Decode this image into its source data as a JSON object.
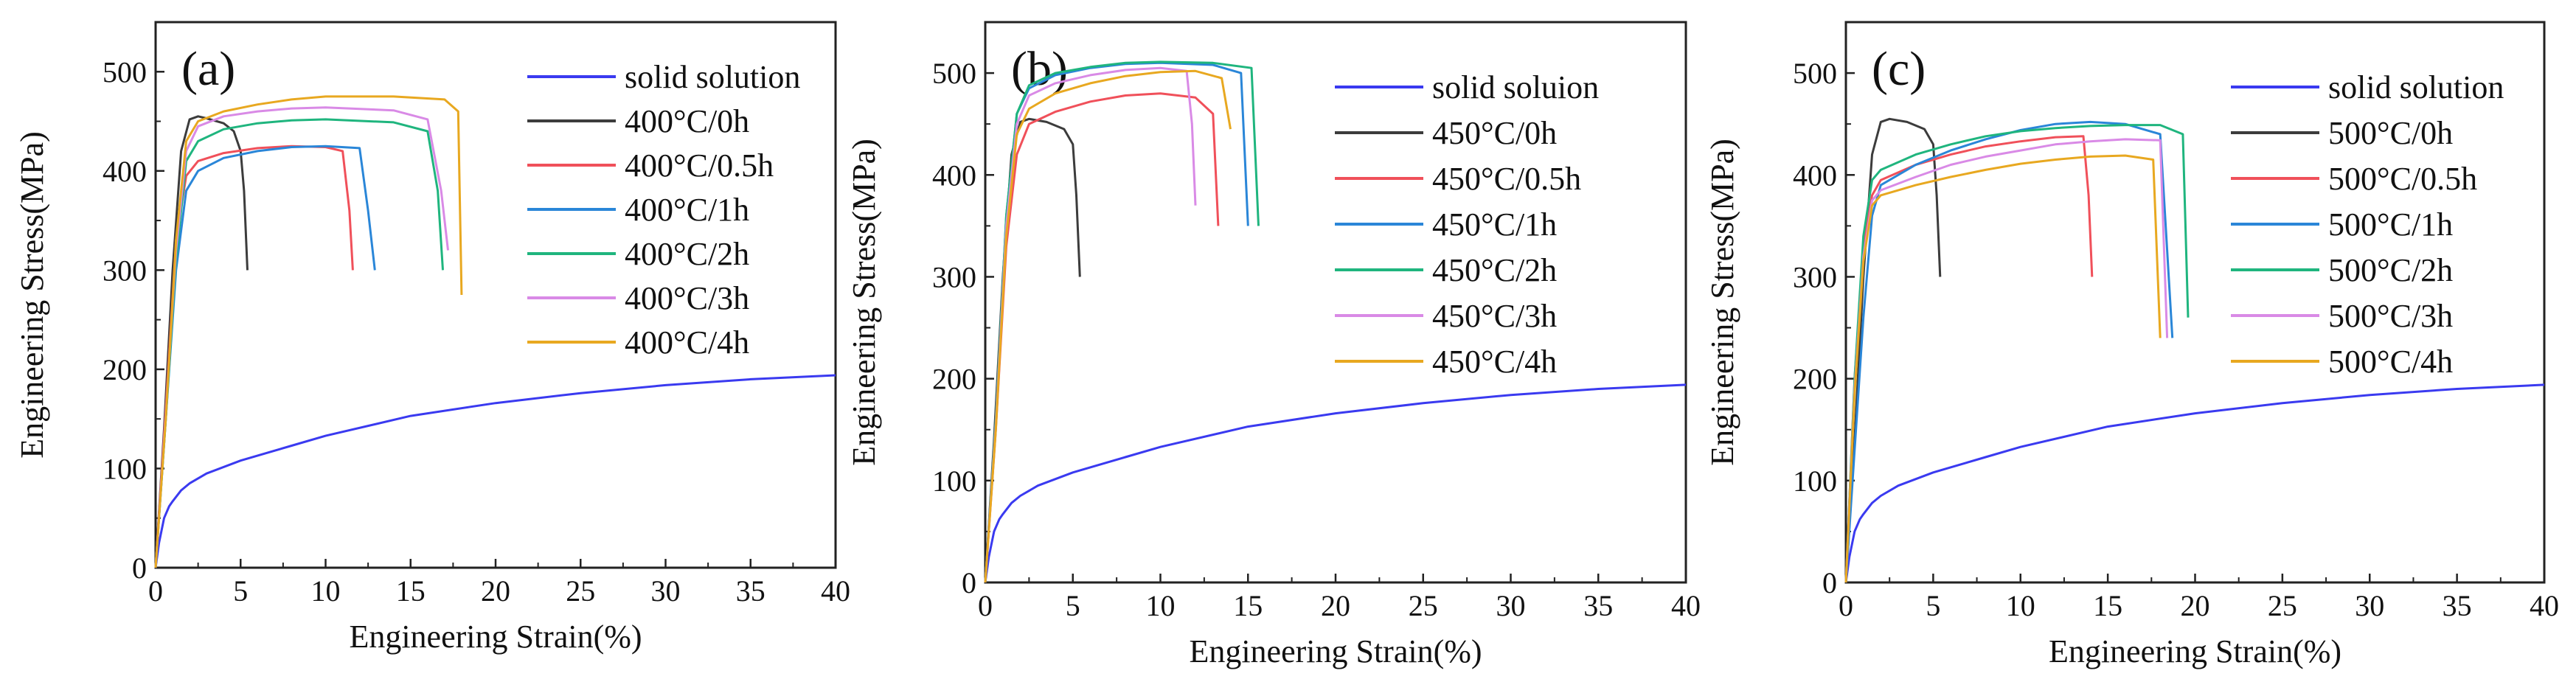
{
  "figure": {
    "ylabel": "Engineering Stress(MPa)",
    "xlabel": "Engineering Strain(%)"
  },
  "chart_data": [
    {
      "type": "line",
      "panel_label": "(a)",
      "xlabel": "Engineering Strain(%)",
      "ylabel": "Engineering Stress(MPa)",
      "xlim": [
        0,
        40
      ],
      "ylim": [
        0,
        550
      ],
      "xticks": [
        0,
        5,
        10,
        15,
        20,
        25,
        30,
        35,
        40
      ],
      "yticks": [
        0,
        100,
        200,
        300,
        400,
        500
      ],
      "legend_position": "right",
      "series": [
        {
          "name": "solid solution",
          "color": "#3a3af0",
          "x": [
            0,
            0.2,
            0.5,
            0.8,
            1.0,
            1.5,
            2,
            3,
            5,
            8,
            10,
            15,
            20,
            25,
            30,
            35,
            40
          ],
          "y": [
            0,
            25,
            50,
            62,
            67,
            78,
            85,
            95,
            108,
            123,
            133,
            153,
            166,
            176,
            184,
            190,
            194
          ]
        },
        {
          "name": "400°C/0h",
          "color": "#3c3c3c",
          "x": [
            0,
            0.5,
            1.0,
            1.5,
            2.0,
            2.5,
            3.0,
            4.0,
            4.6,
            5.0,
            5.2,
            5.4
          ],
          "y": [
            0,
            140,
            300,
            420,
            452,
            455,
            453,
            448,
            440,
            420,
            380,
            300
          ]
        },
        {
          "name": "400°C/0.5h",
          "color": "#f0505a",
          "x": [
            0,
            0.6,
            1.2,
            1.8,
            2.5,
            4,
            6,
            8,
            10,
            11.0,
            11.4,
            11.6
          ],
          "y": [
            0,
            160,
            330,
            395,
            410,
            418,
            423,
            425,
            424,
            420,
            360,
            300
          ]
        },
        {
          "name": "400°C/1h",
          "color": "#2a86d8",
          "x": [
            0,
            0.6,
            1.2,
            1.8,
            2.5,
            4,
            6,
            8,
            10,
            12,
            12.5,
            12.9
          ],
          "y": [
            0,
            150,
            300,
            380,
            400,
            413,
            420,
            424,
            425,
            423,
            360,
            300
          ]
        },
        {
          "name": "400°C/2h",
          "color": "#1fb57e",
          "x": [
            0,
            0.6,
            1.2,
            1.8,
            2.5,
            4,
            6,
            8,
            10,
            14,
            16,
            16.6,
            16.9
          ],
          "y": [
            0,
            150,
            310,
            410,
            430,
            442,
            448,
            451,
            452,
            449,
            440,
            380,
            300
          ]
        },
        {
          "name": "400°C/3h",
          "color": "#d98ae6",
          "x": [
            0,
            0.6,
            1.2,
            1.8,
            2.5,
            4,
            6,
            8,
            10,
            14,
            16,
            16.8,
            17.2
          ],
          "y": [
            0,
            155,
            320,
            420,
            445,
            455,
            460,
            463,
            464,
            461,
            452,
            380,
            320
          ]
        },
        {
          "name": "400°C/4h",
          "color": "#e8a820",
          "x": [
            0,
            0.6,
            1.2,
            1.8,
            2.5,
            4,
            6,
            8,
            10,
            14,
            17,
            17.8,
            18.0
          ],
          "y": [
            0,
            150,
            330,
            430,
            450,
            460,
            467,
            472,
            475,
            475,
            472,
            460,
            275
          ]
        }
      ]
    },
    {
      "type": "line",
      "panel_label": "(b)",
      "xlabel": "Engineering Strain(%)",
      "ylabel": "Engineering Stress(MPa)",
      "xlim": [
        0,
        40
      ],
      "ylim": [
        0,
        550
      ],
      "xticks": [
        0,
        5,
        10,
        15,
        20,
        25,
        30,
        35,
        40
      ],
      "yticks": [
        0,
        100,
        200,
        300,
        400,
        500
      ],
      "legend_position": "right",
      "series": [
        {
          "name": "solid soluion",
          "color": "#3a3af0",
          "x": [
            0,
            0.2,
            0.5,
            0.8,
            1.0,
            1.5,
            2,
            3,
            5,
            8,
            10,
            15,
            20,
            25,
            30,
            35,
            40
          ],
          "y": [
            0,
            25,
            50,
            62,
            67,
            78,
            85,
            95,
            108,
            123,
            133,
            153,
            166,
            176,
            184,
            190,
            194
          ]
        },
        {
          "name": "450°C/0h",
          "color": "#3c3c3c",
          "x": [
            0,
            0.5,
            1.0,
            1.5,
            2.0,
            2.5,
            3.5,
            4.5,
            5.0,
            5.2,
            5.4
          ],
          "y": [
            0,
            140,
            300,
            420,
            452,
            455,
            452,
            445,
            430,
            380,
            300
          ]
        },
        {
          "name": "450°C/0.5h",
          "color": "#f0505a",
          "x": [
            0,
            0.6,
            1.2,
            1.8,
            2.5,
            4,
            6,
            8,
            10,
            12,
            13,
            13.3
          ],
          "y": [
            0,
            150,
            330,
            420,
            450,
            462,
            472,
            478,
            480,
            476,
            460,
            350
          ]
        },
        {
          "name": "450°C/1h",
          "color": "#2a86d8",
          "x": [
            0,
            0.6,
            1.2,
            1.8,
            2.5,
            4,
            6,
            8,
            10,
            13,
            14.6,
            15.0
          ],
          "y": [
            0,
            160,
            360,
            460,
            485,
            498,
            505,
            509,
            510,
            508,
            500,
            350
          ]
        },
        {
          "name": "450°C/2h",
          "color": "#1fb57e",
          "x": [
            0,
            0.6,
            1.2,
            1.8,
            2.5,
            4,
            6,
            8,
            10,
            13,
            15.2,
            15.6
          ],
          "y": [
            0,
            160,
            360,
            460,
            488,
            500,
            506,
            510,
            511,
            510,
            505,
            350
          ]
        },
        {
          "name": "450°C/3h",
          "color": "#d98ae6",
          "x": [
            0,
            0.6,
            1.2,
            1.8,
            2.5,
            4,
            6,
            8,
            10,
            11.5,
            11.8,
            12.0
          ],
          "y": [
            0,
            155,
            350,
            450,
            478,
            490,
            498,
            503,
            505,
            502,
            450,
            370
          ]
        },
        {
          "name": "450°C/4h",
          "color": "#e8a820",
          "x": [
            0,
            0.6,
            1.2,
            1.8,
            2.5,
            4,
            6,
            8,
            10,
            12,
            13.5,
            14.0
          ],
          "y": [
            0,
            150,
            340,
            440,
            465,
            480,
            490,
            497,
            501,
            502,
            495,
            445
          ]
        }
      ]
    },
    {
      "type": "line",
      "panel_label": "(c)",
      "xlabel": "Engineering Strain(%)",
      "ylabel": "Engineering Stress(MPa)",
      "xlim": [
        0,
        40
      ],
      "ylim": [
        0,
        550
      ],
      "xticks": [
        0,
        5,
        10,
        15,
        20,
        25,
        30,
        35,
        40
      ],
      "yticks": [
        0,
        100,
        200,
        300,
        400,
        500
      ],
      "legend_position": "right",
      "series": [
        {
          "name": "solid solution",
          "color": "#3a3af0",
          "x": [
            0,
            0.2,
            0.5,
            0.8,
            1.0,
            1.5,
            2,
            3,
            5,
            8,
            10,
            15,
            20,
            25,
            30,
            35,
            40
          ],
          "y": [
            0,
            25,
            50,
            62,
            67,
            78,
            85,
            95,
            108,
            123,
            133,
            153,
            166,
            176,
            184,
            190,
            194
          ]
        },
        {
          "name": "500°C/0h",
          "color": "#3c3c3c",
          "x": [
            0,
            0.5,
            1.0,
            1.5,
            2.0,
            2.5,
            3.5,
            4.5,
            5.0,
            5.2,
            5.4
          ],
          "y": [
            0,
            140,
            300,
            420,
            452,
            455,
            452,
            445,
            430,
            380,
            300
          ]
        },
        {
          "name": "500°C/0.5h",
          "color": "#f0505a",
          "x": [
            0,
            0.5,
            1.0,
            1.5,
            2,
            4,
            6,
            8,
            10,
            12,
            13.6,
            13.9,
            14.1
          ],
          "y": [
            0,
            200,
            330,
            380,
            395,
            410,
            420,
            428,
            433,
            437,
            438,
            380,
            300
          ]
        },
        {
          "name": "500°C/1h",
          "color": "#2a86d8",
          "x": [
            0,
            0.5,
            1.0,
            1.5,
            2,
            4,
            6,
            8,
            10,
            12,
            14,
            16,
            18,
            18.7
          ],
          "y": [
            0,
            130,
            260,
            360,
            390,
            410,
            424,
            435,
            444,
            450,
            452,
            450,
            440,
            240
          ]
        },
        {
          "name": "500°C/2h",
          "color": "#1fb57e",
          "x": [
            0,
            0.5,
            1.0,
            1.5,
            2,
            4,
            6,
            8,
            10,
            12,
            14,
            16,
            18,
            19.3,
            19.6
          ],
          "y": [
            0,
            200,
            340,
            395,
            405,
            420,
            430,
            438,
            443,
            446,
            448,
            449,
            449,
            440,
            260
          ]
        },
        {
          "name": "500°C/3h",
          "color": "#d98ae6",
          "x": [
            0,
            0.5,
            1.0,
            1.5,
            2,
            4,
            6,
            8,
            10,
            12,
            14,
            16,
            18,
            18.4
          ],
          "y": [
            0,
            190,
            320,
            375,
            385,
            398,
            410,
            418,
            424,
            430,
            433,
            435,
            434,
            240
          ]
        },
        {
          "name": "500°C/4h",
          "color": "#e8a820",
          "x": [
            0,
            0.5,
            1.0,
            1.5,
            2,
            4,
            6,
            8,
            10,
            12,
            14,
            16,
            17.6,
            18.0
          ],
          "y": [
            0,
            185,
            315,
            370,
            380,
            390,
            398,
            405,
            411,
            415,
            418,
            419,
            415,
            240
          ]
        }
      ]
    }
  ]
}
